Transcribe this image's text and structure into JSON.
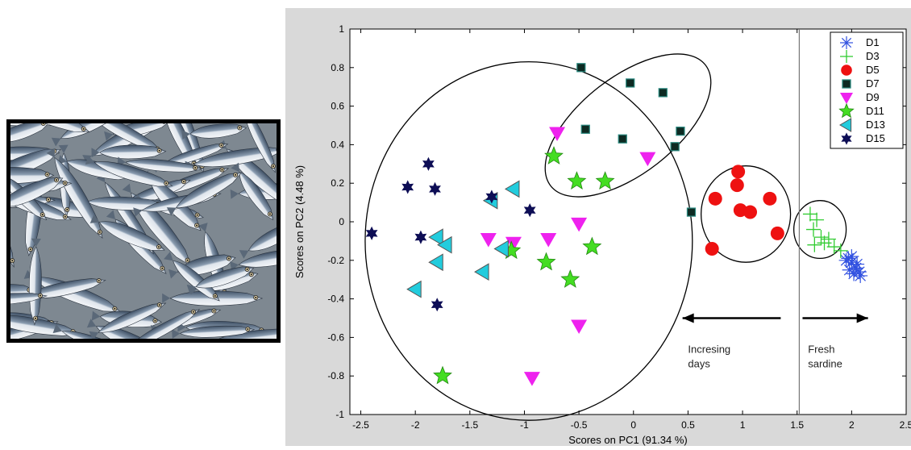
{
  "photo": {
    "subject": "sardines"
  },
  "chart_data": {
    "type": "scatter",
    "title": "",
    "xlabel": "Scores on PC1 (91.34 %)",
    "ylabel": "Scores on PC2 (4.48 %)",
    "xlim": [
      -2.6,
      2.5
    ],
    "ylim": [
      -1,
      1
    ],
    "xticks": [
      "-2.5",
      "-2",
      "-1.5",
      "-1",
      "-0.5",
      "0",
      "0.5",
      "1",
      "1.5",
      "2",
      "2.5"
    ],
    "yticks": [
      "1",
      "0.8",
      "0.6",
      "0.4",
      "0.2",
      "0",
      "-0.2",
      "-0.4",
      "-0.6",
      "-0.8",
      "-1"
    ],
    "grid": false,
    "legend_position": "top-right",
    "series": [
      {
        "name": "D1",
        "marker": "asterisk",
        "color": "#3050e0",
        "points": [
          [
            1.95,
            -0.2
          ],
          [
            2.0,
            -0.18
          ],
          [
            2.05,
            -0.22
          ],
          [
            1.98,
            -0.25
          ],
          [
            2.02,
            -0.27
          ],
          [
            2.08,
            -0.28
          ],
          [
            2.0,
            -0.21
          ],
          [
            1.97,
            -0.19
          ],
          [
            2.04,
            -0.24
          ],
          [
            2.07,
            -0.26
          ]
        ]
      },
      {
        "name": "D3",
        "marker": "plus",
        "color": "#33cc33",
        "points": [
          [
            1.62,
            0.04
          ],
          [
            1.68,
            0.01
          ],
          [
            1.65,
            -0.04
          ],
          [
            1.72,
            -0.08
          ],
          [
            1.66,
            -0.12
          ],
          [
            1.79,
            -0.09
          ],
          [
            1.84,
            -0.13
          ],
          [
            1.75,
            -0.11
          ],
          [
            1.9,
            -0.15
          ]
        ]
      },
      {
        "name": "D5",
        "marker": "circle",
        "color": "#ee1111",
        "points": [
          [
            0.96,
            0.26
          ],
          [
            0.95,
            0.19
          ],
          [
            0.75,
            0.12
          ],
          [
            0.98,
            0.06
          ],
          [
            1.07,
            0.05
          ],
          [
            1.25,
            0.12
          ],
          [
            1.32,
            -0.06
          ],
          [
            0.72,
            -0.14
          ]
        ]
      },
      {
        "name": "D7",
        "marker": "square",
        "color": "#0d2a22",
        "points": [
          [
            -0.48,
            0.8
          ],
          [
            -0.03,
            0.72
          ],
          [
            0.27,
            0.67
          ],
          [
            -0.44,
            0.48
          ],
          [
            -0.1,
            0.43
          ],
          [
            0.43,
            0.47
          ],
          [
            0.38,
            0.39
          ],
          [
            0.53,
            0.05
          ]
        ]
      },
      {
        "name": "D9",
        "marker": "triangle-down",
        "color": "#ee22ee",
        "points": [
          [
            -0.7,
            0.46
          ],
          [
            0.13,
            0.33
          ],
          [
            -0.5,
            -0.01
          ],
          [
            -1.33,
            -0.09
          ],
          [
            -1.1,
            -0.11
          ],
          [
            -0.78,
            -0.09
          ],
          [
            -0.5,
            -0.54
          ],
          [
            -0.93,
            -0.81
          ]
        ]
      },
      {
        "name": "D11",
        "marker": "star",
        "color": "#44dd22",
        "points": [
          [
            -0.73,
            0.34
          ],
          [
            -0.52,
            0.21
          ],
          [
            -0.26,
            0.21
          ],
          [
            -0.38,
            -0.13
          ],
          [
            -1.12,
            -0.15
          ],
          [
            -0.8,
            -0.21
          ],
          [
            -0.58,
            -0.3
          ],
          [
            -1.75,
            -0.8
          ]
        ]
      },
      {
        "name": "D13",
        "marker": "triangle-left",
        "color": "#22ccdd",
        "points": [
          [
            -1.1,
            0.17
          ],
          [
            -1.3,
            0.11
          ],
          [
            -1.8,
            -0.08
          ],
          [
            -1.72,
            -0.12
          ],
          [
            -1.8,
            -0.21
          ],
          [
            -1.2,
            -0.14
          ],
          [
            -1.38,
            -0.26
          ],
          [
            -2.0,
            -0.35
          ]
        ]
      },
      {
        "name": "D15",
        "marker": "hexagram",
        "color": "#0d0d55",
        "points": [
          [
            -1.88,
            0.3
          ],
          [
            -2.07,
            0.18
          ],
          [
            -1.82,
            0.17
          ],
          [
            -1.3,
            0.13
          ],
          [
            -0.95,
            0.06
          ],
          [
            -2.4,
            -0.06
          ],
          [
            -1.95,
            -0.08
          ],
          [
            -1.8,
            -0.43
          ]
        ]
      }
    ],
    "ellipses": [
      {
        "cx": -0.96,
        "cy": -0.1,
        "rx": 1.5,
        "ry": 0.93,
        "rotate": 0
      },
      {
        "cx": -0.05,
        "cy": 0.5,
        "rx": 0.9,
        "ry": 0.25,
        "rotate": -38
      },
      {
        "cx": 1.03,
        "cy": 0.04,
        "rx": 0.41,
        "ry": 0.25,
        "rotate": 0
      },
      {
        "cx": 1.71,
        "cy": -0.04,
        "rx": 0.24,
        "ry": 0.15,
        "rotate": 0
      }
    ],
    "vertical_line_x": 1.52,
    "annotations": [
      {
        "lines": [
          "Incresing",
          "days"
        ],
        "x": 0.5,
        "y": -0.68
      },
      {
        "lines": [
          "Fresh",
          "sardine"
        ],
        "x": 1.6,
        "y": -0.68
      }
    ],
    "arrows": [
      {
        "from": [
          1.35,
          -0.5
        ],
        "to": [
          0.45,
          -0.5
        ]
      },
      {
        "from": [
          1.55,
          -0.5
        ],
        "to": [
          2.15,
          -0.5
        ]
      }
    ]
  }
}
